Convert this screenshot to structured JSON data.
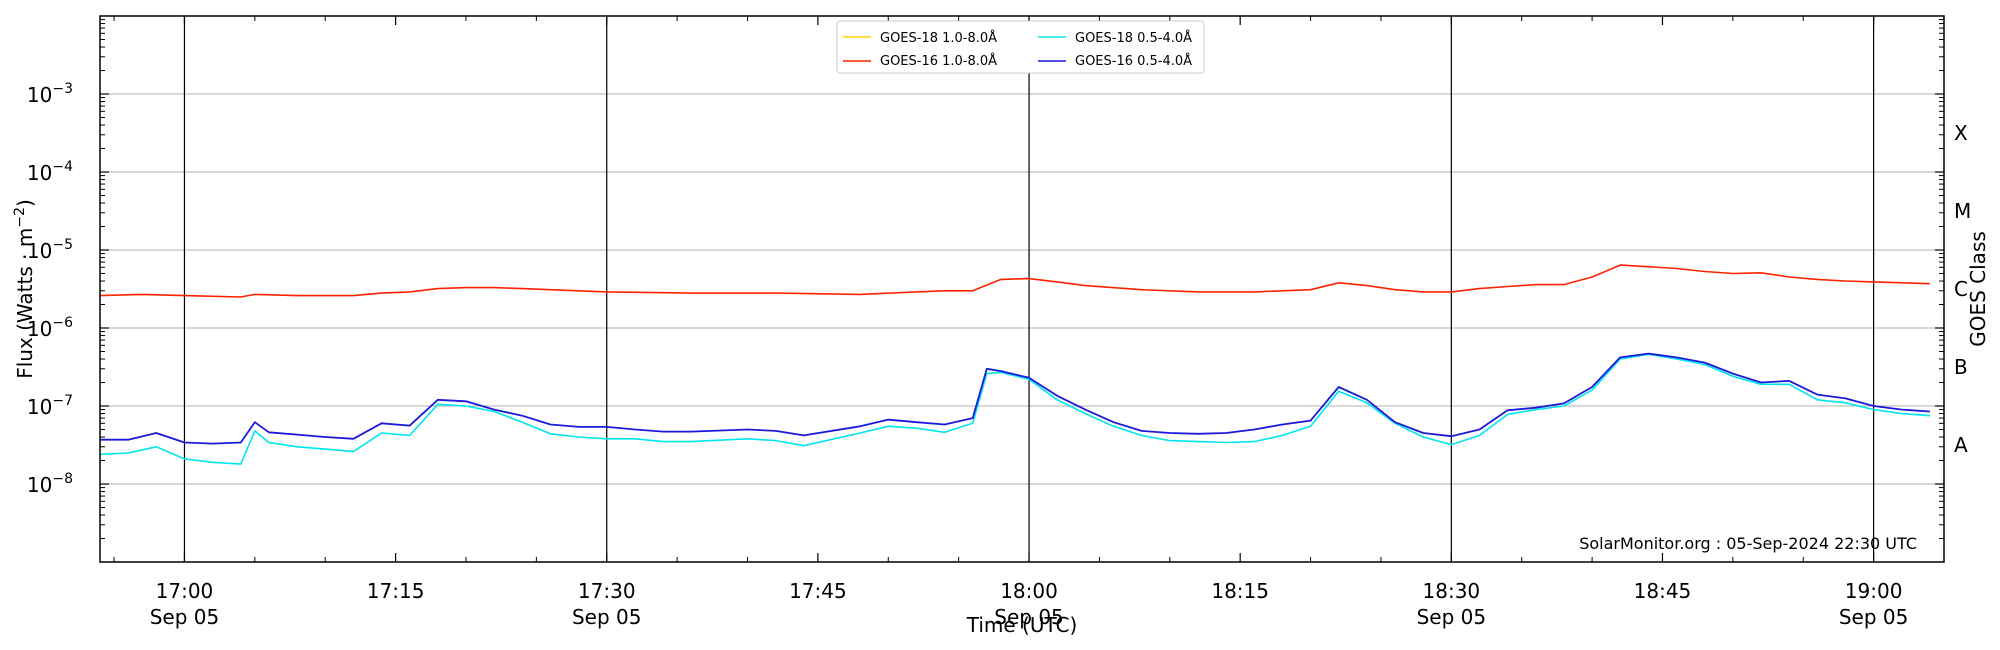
{
  "chart_data": {
    "type": "line",
    "xlabel": "Time (UTC)",
    "ylabel_main": "Flux (Watts · m",
    "ylabel_sup": "−2",
    "ylabel_close": ")",
    "right_label": "GOES Class",
    "credit": "SolarMonitor.org : 05-Sep-2024 22:30 UTC",
    "y_scale": "log",
    "ylim": [
      1e-09,
      0.01
    ],
    "x_range_minutes": [
      -6,
      60
    ],
    "x_ticks": [
      {
        "min": 0,
        "time": "17:00",
        "date": "Sep 05",
        "major": true
      },
      {
        "min": 15,
        "time": "17:15",
        "date": "",
        "major": false
      },
      {
        "min": 30,
        "time": "17:30",
        "date": "Sep 05",
        "major": true
      },
      {
        "min": 45,
        "time": "17:45",
        "date": "",
        "major": false
      },
      {
        "min": 60,
        "time": "18:00",
        "date": "Sep 05",
        "major": true
      },
      {
        "min": 75,
        "time": "18:15",
        "date": "",
        "major": false
      },
      {
        "min": 90,
        "time": "18:30",
        "date": "Sep 05",
        "major": true
      },
      {
        "min": 105,
        "time": "18:45",
        "date": "",
        "major": false
      },
      {
        "min": 120,
        "time": "19:00",
        "date": "Sep 05",
        "major": true
      }
    ],
    "x_min": -6,
    "x_max": 125,
    "y_ticks": [
      {
        "exp": -3,
        "label": "10",
        "sup": "−3"
      },
      {
        "exp": -4,
        "label": "10",
        "sup": "−4"
      },
      {
        "exp": -5,
        "label": "10",
        "sup": "−5"
      },
      {
        "exp": -6,
        "label": "10",
        "sup": "−6"
      },
      {
        "exp": -7,
        "label": "10",
        "sup": "−7"
      },
      {
        "exp": -8,
        "label": "10",
        "sup": "−8"
      }
    ],
    "classes": [
      {
        "label": "X",
        "exp": -3.5
      },
      {
        "label": "M",
        "exp": -4.5
      },
      {
        "label": "C",
        "exp": -5.5
      },
      {
        "label": "B",
        "exp": -6.5
      },
      {
        "label": "A",
        "exp": -7.5
      }
    ],
    "grid": true,
    "legend_position": "top-center",
    "series": [
      {
        "name": "GOES-18 1.0-8.0Å",
        "color": "#ffd700",
        "x": [],
        "values": []
      },
      {
        "name": "GOES-16 1.0-8.0Å",
        "color": "#ff2200",
        "x": [
          -6,
          -3,
          0,
          4,
          5,
          8,
          12,
          14,
          16,
          18,
          20,
          22,
          24,
          26,
          28,
          30,
          36,
          42,
          48,
          52,
          54,
          56,
          58,
          60,
          62,
          64,
          68,
          72,
          76,
          80,
          82,
          84,
          86,
          88,
          90,
          92,
          94,
          96,
          98,
          100,
          102,
          104,
          106,
          108,
          110,
          112,
          114,
          116,
          118,
          120,
          124
        ],
        "values": [
          2.6e-06,
          2.7e-06,
          2.6e-06,
          2.5e-06,
          2.7e-06,
          2.6e-06,
          2.6e-06,
          2.8e-06,
          2.9e-06,
          3.2e-06,
          3.3e-06,
          3.3e-06,
          3.2e-06,
          3.1e-06,
          3e-06,
          2.9e-06,
          2.8e-06,
          2.8e-06,
          2.7e-06,
          2.9e-06,
          3e-06,
          3e-06,
          4.2e-06,
          4.3e-06,
          3.9e-06,
          3.5e-06,
          3.1e-06,
          2.9e-06,
          2.9e-06,
          3.1e-06,
          3.8e-06,
          3.5e-06,
          3.1e-06,
          2.9e-06,
          2.9e-06,
          3.2e-06,
          3.4e-06,
          3.6e-06,
          3.6e-06,
          4.5e-06,
          6.4e-06,
          6.1e-06,
          5.8e-06,
          5.3e-06,
          5e-06,
          5.1e-06,
          4.5e-06,
          4.2e-06,
          4e-06,
          3.9e-06,
          3.7e-06
        ]
      },
      {
        "name": "GOES-18 0.5-4.0Å",
        "color": "#00e5ee",
        "x": [
          -6,
          -4,
          -2,
          0,
          2,
          4,
          5,
          6,
          8,
          10,
          12,
          14,
          16,
          18,
          20,
          22,
          24,
          26,
          28,
          30,
          32,
          34,
          36,
          40,
          42,
          44,
          48,
          50,
          52,
          54,
          56,
          57,
          58,
          60,
          62,
          64,
          66,
          68,
          70,
          72,
          74,
          76,
          78,
          80,
          82,
          84,
          86,
          88,
          90,
          92,
          94,
          96,
          98,
          100,
          102,
          104,
          106,
          108,
          110,
          112,
          114,
          116,
          118,
          120,
          122,
          124
        ],
        "values": [
          2.4e-08,
          2.5e-08,
          3e-08,
          2.1e-08,
          1.9e-08,
          1.8e-08,
          4.8e-08,
          3.4e-08,
          3e-08,
          2.8e-08,
          2.6e-08,
          4.5e-08,
          4.2e-08,
          1.05e-07,
          1e-07,
          8.5e-08,
          6.2e-08,
          4.4e-08,
          4e-08,
          3.8e-08,
          3.8e-08,
          3.5e-08,
          3.5e-08,
          3.8e-08,
          3.6e-08,
          3.1e-08,
          4.5e-08,
          5.5e-08,
          5.2e-08,
          4.6e-08,
          6e-08,
          2.6e-07,
          2.7e-07,
          2.2e-07,
          1.2e-07,
          8e-08,
          5.5e-08,
          4.2e-08,
          3.6e-08,
          3.5e-08,
          3.4e-08,
          3.5e-08,
          4.2e-08,
          5.5e-08,
          1.55e-07,
          1.1e-07,
          6e-08,
          4e-08,
          3.2e-08,
          4.2e-08,
          7.8e-08,
          9e-08,
          1e-07,
          1.6e-07,
          4e-07,
          4.6e-07,
          4e-07,
          3.4e-07,
          2.4e-07,
          1.9e-07,
          1.9e-07,
          1.2e-07,
          1.1e-07,
          9e-08,
          8e-08,
          7.5e-08
        ]
      },
      {
        "name": "GOES-16 0.5-4.0Å",
        "color": "#1a1adb",
        "x": [
          -6,
          -4,
          -2,
          0,
          2,
          4,
          5,
          6,
          8,
          10,
          12,
          14,
          16,
          18,
          20,
          22,
          24,
          26,
          28,
          30,
          32,
          34,
          36,
          40,
          42,
          44,
          48,
          50,
          52,
          54,
          56,
          57,
          58,
          60,
          62,
          64,
          66,
          68,
          70,
          72,
          74,
          76,
          78,
          80,
          82,
          84,
          86,
          88,
          90,
          92,
          94,
          96,
          98,
          100,
          102,
          104,
          106,
          108,
          110,
          112,
          114,
          116,
          118,
          120,
          122,
          124
        ],
        "values": [
          3.7e-08,
          3.7e-08,
          4.5e-08,
          3.4e-08,
          3.3e-08,
          3.4e-08,
          6.2e-08,
          4.6e-08,
          4.3e-08,
          4e-08,
          3.8e-08,
          6e-08,
          5.6e-08,
          1.2e-07,
          1.15e-07,
          9e-08,
          7.5e-08,
          5.8e-08,
          5.4e-08,
          5.4e-08,
          5e-08,
          4.7e-08,
          4.7e-08,
          5e-08,
          4.8e-08,
          4.2e-08,
          5.5e-08,
          6.7e-08,
          6.2e-08,
          5.8e-08,
          7e-08,
          3e-07,
          2.8e-07,
          2.3e-07,
          1.35e-07,
          9e-08,
          6.2e-08,
          4.8e-08,
          4.5e-08,
          4.4e-08,
          4.5e-08,
          5e-08,
          5.8e-08,
          6.5e-08,
          1.75e-07,
          1.2e-07,
          6.2e-08,
          4.5e-08,
          4.1e-08,
          5e-08,
          8.8e-08,
          9.5e-08,
          1.08e-07,
          1.75e-07,
          4.2e-07,
          4.7e-07,
          4.2e-07,
          3.6e-07,
          2.6e-07,
          2e-07,
          2.1e-07,
          1.4e-07,
          1.25e-07,
          1e-07,
          9e-08,
          8.5e-08
        ]
      }
    ]
  }
}
